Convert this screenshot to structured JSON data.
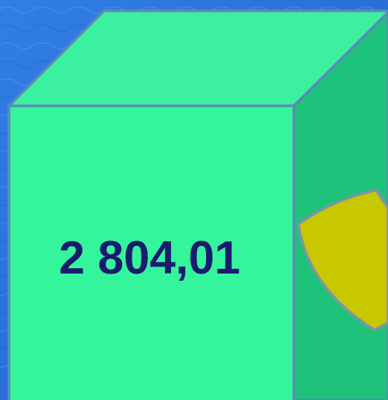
{
  "label": "2 804,01"
}
